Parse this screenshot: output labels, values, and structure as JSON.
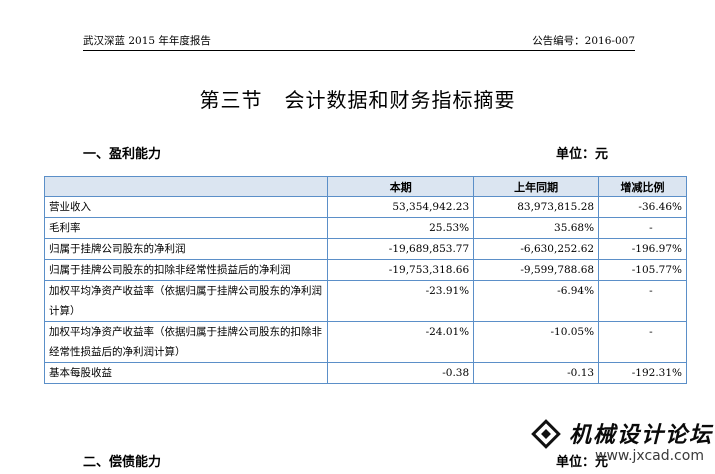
{
  "header": {
    "left_text": "武汉深蓝 2015 年年度报告",
    "right_text": "公告编号：2016-007"
  },
  "section": {
    "title_number": "第三节",
    "title_text": "会计数据和财务指标摘要"
  },
  "profitability": {
    "heading": "一、盈利能力",
    "unit": "单位：元",
    "columns": [
      "",
      "本期",
      "上年同期",
      "增减比例"
    ],
    "rows": [
      {
        "item": "营业收入",
        "current": "53,354,942.23",
        "previous": "83,973,815.28",
        "change": "-36.46%"
      },
      {
        "item": "毛利率",
        "current": "25.53%",
        "previous": "35.68%",
        "change": "-"
      },
      {
        "item": "归属于挂牌公司股东的净利润",
        "current": "-19,689,853.77",
        "previous": "-6,630,252.62",
        "change": "-196.97%"
      },
      {
        "item": "归属于挂牌公司股东的扣除非经常性损益后的净利润",
        "current": "-19,753,318.66",
        "previous": "-9,599,788.68",
        "change": "-105.77%"
      },
      {
        "item": "加权平均净资产收益率（依据归属于挂牌公司股东的净利润计算）",
        "current": "-23.91%",
        "previous": "-6.94%",
        "change": "-"
      },
      {
        "item": "加权平均净资产收益率（依据归属于挂牌公司股东的扣除非经常性损益后的净利润计算）",
        "current": "-24.01%",
        "previous": "-10.05%",
        "change": "-"
      },
      {
        "item": "基本每股收益",
        "current": "-0.38",
        "previous": "-0.13",
        "change": "-192.31%"
      }
    ]
  },
  "solvency": {
    "heading": "二、偿债能力",
    "unit": "单位：元"
  },
  "watermark": {
    "title": "机械设计论坛",
    "url": "www.jxcad.com",
    "icon": "gear-logo-icon"
  }
}
